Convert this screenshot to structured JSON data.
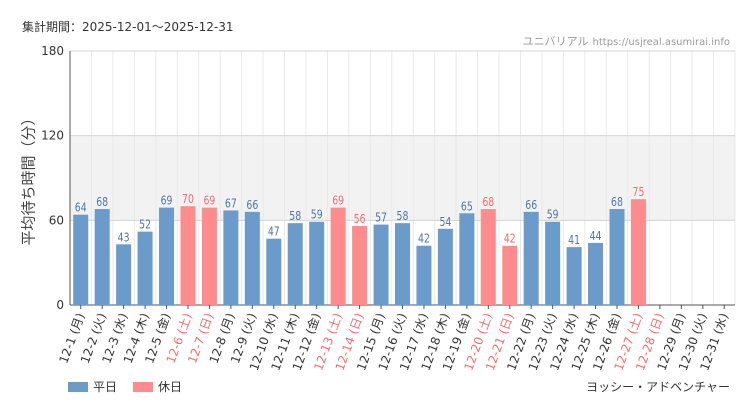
{
  "period": "集計期間：2025-12-01〜2025-12-31",
  "site": {
    "name": "ユニバリアル",
    "url": "https://usjreal.asumirai.info"
  },
  "attraction": "ヨッシー・アドベンチャー",
  "colors": {
    "weekday": "#6a9bcb",
    "holiday": "#ff8c8c",
    "weekdayText": "#4a78a8",
    "holidayText": "#ee6e6e"
  },
  "legend": [
    {
      "label": "平日",
      "type": "weekday"
    },
    {
      "label": "休日",
      "type": "holiday"
    }
  ],
  "chart_data": {
    "type": "bar",
    "ylabel": "平均待ち時間（分）",
    "xlabel": "",
    "ylim": [
      0,
      180
    ],
    "yticks": [
      0,
      60,
      120,
      180
    ],
    "shaded_band": [
      60,
      120
    ],
    "categories": [
      "12-1 (月)",
      "12-2 (火)",
      "12-3 (水)",
      "12-4 (木)",
      "12-5 (金)",
      "12-6 (土)",
      "12-7 (日)",
      "12-8 (月)",
      "12-9 (火)",
      "12-10 (水)",
      "12-11 (木)",
      "12-12 (金)",
      "12-13 (土)",
      "12-14 (日)",
      "12-15 (月)",
      "12-16 (火)",
      "12-17 (水)",
      "12-18 (木)",
      "12-19 (金)",
      "12-20 (土)",
      "12-21 (日)",
      "12-22 (月)",
      "12-23 (火)",
      "12-24 (水)",
      "12-25 (木)",
      "12-26 (金)",
      "12-27 (土)",
      "12-28 (日)",
      "12-29 (月)",
      "12-30 (火)",
      "12-31 (水)"
    ],
    "values": [
      64,
      68,
      43,
      52,
      69,
      70,
      69,
      67,
      66,
      47,
      58,
      59,
      69,
      56,
      57,
      58,
      42,
      54,
      65,
      68,
      42,
      66,
      59,
      41,
      44,
      68,
      75,
      null,
      null,
      null,
      null
    ],
    "day_types": [
      "weekday",
      "weekday",
      "weekday",
      "weekday",
      "weekday",
      "holiday",
      "holiday",
      "weekday",
      "weekday",
      "weekday",
      "weekday",
      "weekday",
      "holiday",
      "holiday",
      "weekday",
      "weekday",
      "weekday",
      "weekday",
      "weekday",
      "holiday",
      "holiday",
      "weekday",
      "weekday",
      "weekday",
      "weekday",
      "weekday",
      "holiday",
      "holiday",
      "weekday",
      "weekday",
      "weekday"
    ]
  }
}
